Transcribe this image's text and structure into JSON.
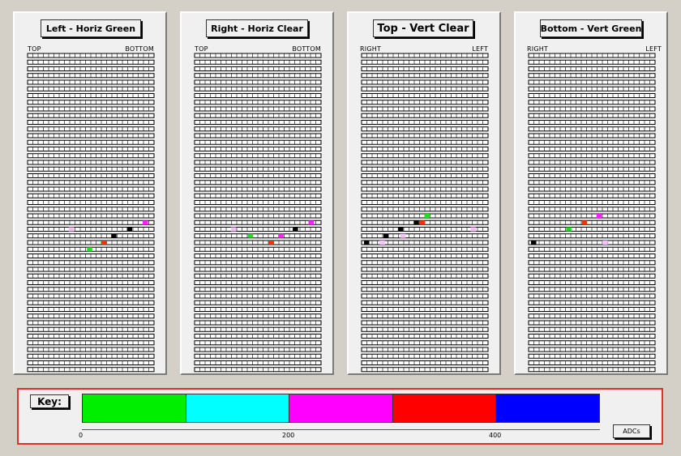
{
  "panels": [
    {
      "title": "Left - Horiz Green",
      "left_end_label": "TOP",
      "right_end_label": "BOTTOM",
      "strip_count": 48,
      "hits": [
        {
          "strip": 25,
          "pos": 0.95,
          "color": "#ff20ff"
        },
        {
          "strip": 26,
          "pos": 0.34,
          "color": "#ffc0ff"
        },
        {
          "strip": 26,
          "pos": 0.82,
          "color": "#000000"
        },
        {
          "strip": 27,
          "pos": 0.69,
          "color": "#000000"
        },
        {
          "strip": 28,
          "pos": 0.61,
          "color": "#ff3000"
        },
        {
          "strip": 29,
          "pos": 0.49,
          "color": "#20e020"
        }
      ]
    },
    {
      "title": "Right - Horiz Clear",
      "left_end_label": "TOP",
      "right_end_label": "BOTTOM",
      "strip_count": 48,
      "hits": [
        {
          "strip": 25,
          "pos": 0.94,
          "color": "#ff20ff"
        },
        {
          "strip": 26,
          "pos": 0.3,
          "color": "#ffc0ff"
        },
        {
          "strip": 26,
          "pos": 0.81,
          "color": "#000000"
        },
        {
          "strip": 27,
          "pos": 0.44,
          "color": "#20e020"
        },
        {
          "strip": 27,
          "pos": 0.69,
          "color": "#ff20ff"
        },
        {
          "strip": 28,
          "pos": 0.61,
          "color": "#ff3000"
        }
      ]
    },
    {
      "title": "Top - Vert Clear",
      "left_end_label": "RIGHT",
      "right_end_label": "LEFT",
      "strip_count": 48,
      "hits": [
        {
          "strip": 24,
          "pos": 0.52,
          "color": "#20e020"
        },
        {
          "strip": 25,
          "pos": 0.43,
          "color": "#000000"
        },
        {
          "strip": 25,
          "pos": 0.48,
          "color": "#ff3000"
        },
        {
          "strip": 26,
          "pos": 0.3,
          "color": "#000000"
        },
        {
          "strip": 26,
          "pos": 0.9,
          "color": "#ffc0ff"
        },
        {
          "strip": 27,
          "pos": 0.18,
          "color": "#000000"
        },
        {
          "strip": 27,
          "pos": 0.32,
          "color": "#ffc0ff"
        },
        {
          "strip": 28,
          "pos": 0.02,
          "color": "#000000"
        },
        {
          "strip": 28,
          "pos": 0.15,
          "color": "#ffc0ff"
        }
      ]
    },
    {
      "title": "Bottom - Vert Green",
      "left_end_label": "RIGHT",
      "right_end_label": "LEFT",
      "strip_count": 48,
      "hits": [
        {
          "strip": 24,
          "pos": 0.56,
          "color": "#ff20ff"
        },
        {
          "strip": 25,
          "pos": 0.44,
          "color": "#ff3000"
        },
        {
          "strip": 26,
          "pos": 0.31,
          "color": "#20e020"
        },
        {
          "strip": 28,
          "pos": 0.02,
          "color": "#000000"
        },
        {
          "strip": 28,
          "pos": 0.61,
          "color": "#ffc0ff"
        }
      ]
    }
  ],
  "key": {
    "label": "Key:",
    "unit_label": "ADCs",
    "colors": [
      "#00ee00",
      "#00ffff",
      "#ff00ff",
      "#ff0000",
      "#0000ff"
    ],
    "tick_labels": [
      "0",
      "200",
      "400"
    ]
  }
}
